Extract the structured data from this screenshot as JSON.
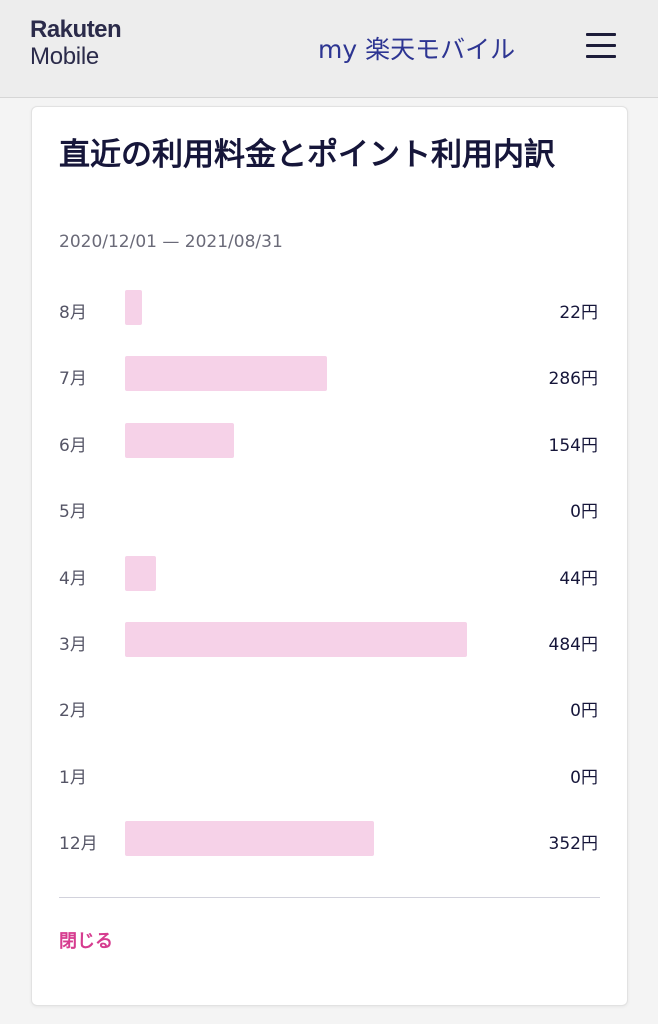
{
  "header": {
    "logo_line1": "Rakuten",
    "logo_line2": "Mobile",
    "title": "my 楽天モバイル",
    "menu_icon": "hamburger-menu-icon"
  },
  "card": {
    "title": "直近の利用料金とポイント利用内訳",
    "period": "2020/12/01 — 2021/08/31",
    "close_label": "閉じる"
  },
  "colors": {
    "bar": "#f6d2e8",
    "accent": "#d63c8f",
    "header_title": "#2d3592"
  },
  "chart_data": {
    "type": "bar",
    "orientation": "horizontal",
    "categories": [
      "8月",
      "7月",
      "6月",
      "5月",
      "4月",
      "3月",
      "2月",
      "1月",
      "12月"
    ],
    "values": [
      22,
      286,
      154,
      0,
      44,
      484,
      0,
      0,
      352
    ],
    "value_labels": [
      "22円",
      "286円",
      "154円",
      "0円",
      "44円",
      "484円",
      "0円",
      "0円",
      "352円"
    ],
    "unit": "円",
    "xlim": [
      0,
      484
    ],
    "grid": false
  }
}
